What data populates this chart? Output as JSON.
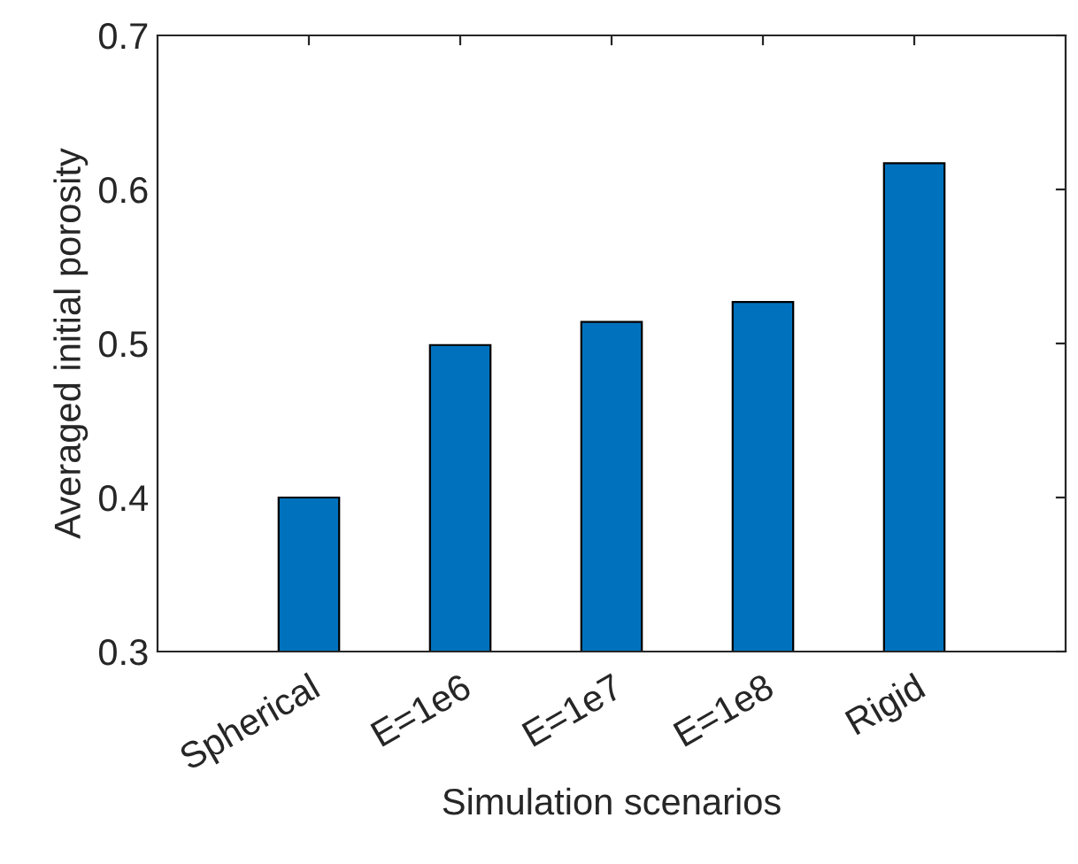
{
  "chart_data": {
    "type": "bar",
    "xlabel": "Simulation scenarios",
    "ylabel": "Averaged initial porosity",
    "categories": [
      "Spherical",
      "E=1e6",
      "E=1e7",
      "E=1e8",
      "Rigid"
    ],
    "values": [
      0.4,
      0.499,
      0.514,
      0.527,
      0.617
    ],
    "color": "#0072bd",
    "ylim": [
      0.3,
      0.7
    ],
    "yticks": [
      0.3,
      0.4,
      0.5,
      0.6,
      0.7
    ],
    "grid": false
  }
}
